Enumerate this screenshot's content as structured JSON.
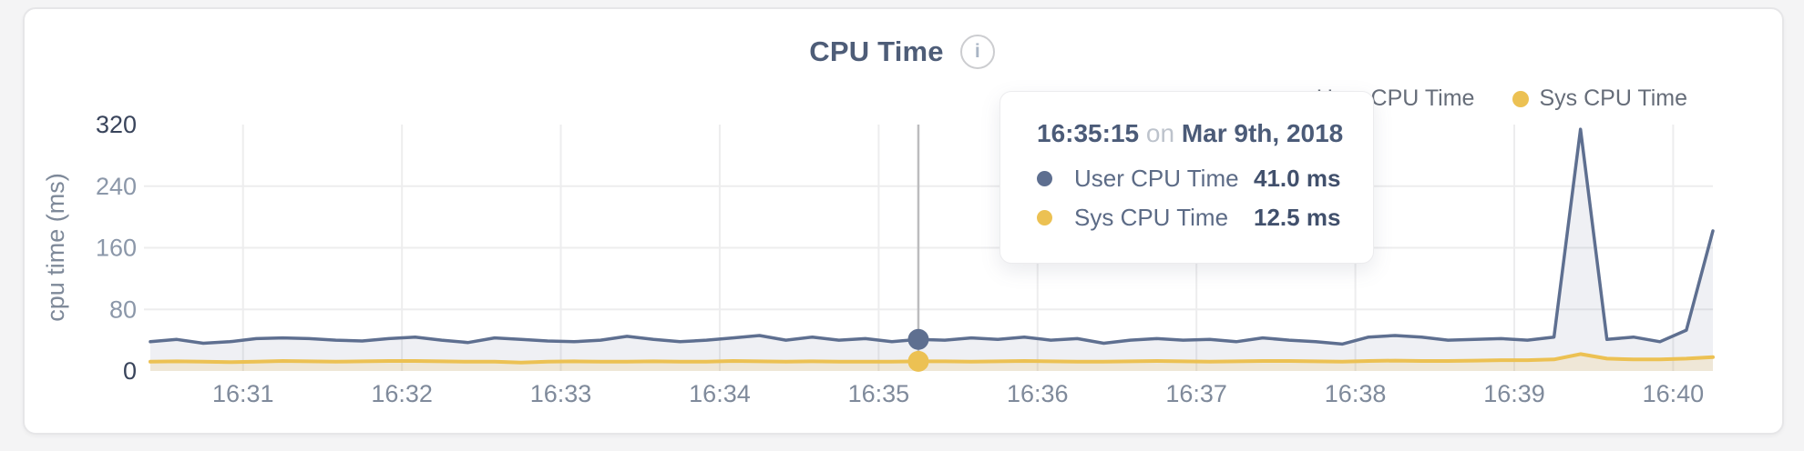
{
  "page": {
    "background": "#f4f4f5"
  },
  "header": {
    "title": "CPU Time",
    "info_icon": "i"
  },
  "legend": {
    "items": [
      {
        "label": "User CPU Time",
        "color": "#5e6f90"
      },
      {
        "label": "Sys CPU Time",
        "color": "#ecc153"
      }
    ]
  },
  "tooltip": {
    "time": "16:35:15",
    "separator": "on",
    "date": "Mar 9th, 2018",
    "rows": [
      {
        "label": "User CPU Time",
        "value": "41.0 ms",
        "color": "#5e6f90"
      },
      {
        "label": "Sys CPU Time",
        "value": "12.5 ms",
        "color": "#ecc153"
      }
    ]
  },
  "chart_data": {
    "type": "area",
    "title": "CPU Time",
    "xlabel": "",
    "ylabel": "cpu time (ms)",
    "ylim": [
      0,
      320
    ],
    "y_ticks": [
      0,
      80,
      160,
      240,
      320
    ],
    "grid": true,
    "legend_position": "top-right",
    "start_time": "16:30:25",
    "sample_interval_s": 10,
    "x_ticks": [
      {
        "label": "16:31",
        "s": 35
      },
      {
        "label": "16:32",
        "s": 95
      },
      {
        "label": "16:33",
        "s": 155
      },
      {
        "label": "16:34",
        "s": 215
      },
      {
        "label": "16:35",
        "s": 275
      },
      {
        "label": "16:36",
        "s": 335
      },
      {
        "label": "16:37",
        "s": 395
      },
      {
        "label": "16:38",
        "s": 455
      },
      {
        "label": "16:39",
        "s": 515
      },
      {
        "label": "16:40",
        "s": 575
      }
    ],
    "series": [
      {
        "name": "User CPU Time",
        "color": "#5e6f90",
        "fill": "rgba(95,111,144,0.10)",
        "values": [
          38,
          41,
          36,
          38,
          42,
          43,
          42,
          40,
          39,
          42,
          44,
          40,
          37,
          43,
          41,
          39,
          38,
          40,
          45,
          41,
          38,
          40,
          43,
          46,
          40,
          44,
          40,
          42,
          38,
          41,
          40,
          43,
          41,
          44,
          40,
          42,
          36,
          40,
          42,
          40,
          41,
          38,
          43,
          40,
          38,
          35,
          44,
          46,
          44,
          40,
          41,
          42,
          40,
          44,
          314,
          41,
          44,
          38,
          53,
          182
        ]
      },
      {
        "name": "Sys CPU Time",
        "color": "#ecc153",
        "fill": "rgba(236,193,83,0.18)",
        "values": [
          12,
          12.5,
          12,
          11.5,
          12,
          13,
          12.5,
          12,
          12.5,
          13,
          13,
          12.5,
          12,
          12,
          11,
          12,
          12.5,
          12,
          12,
          12.5,
          12,
          12,
          13,
          12.5,
          12,
          12.5,
          12,
          12,
          12,
          12.5,
          12.5,
          12,
          12.5,
          13,
          12.5,
          12,
          12,
          12.5,
          13,
          12.5,
          12,
          12.5,
          13,
          13,
          12.5,
          12,
          13,
          13.5,
          13,
          13,
          13.5,
          14,
          14,
          15,
          22,
          16,
          15,
          15,
          16,
          18
        ]
      }
    ],
    "selected_index": 29,
    "selected_values_ms": {
      "user": 41.0,
      "sys": 12.5
    }
  }
}
